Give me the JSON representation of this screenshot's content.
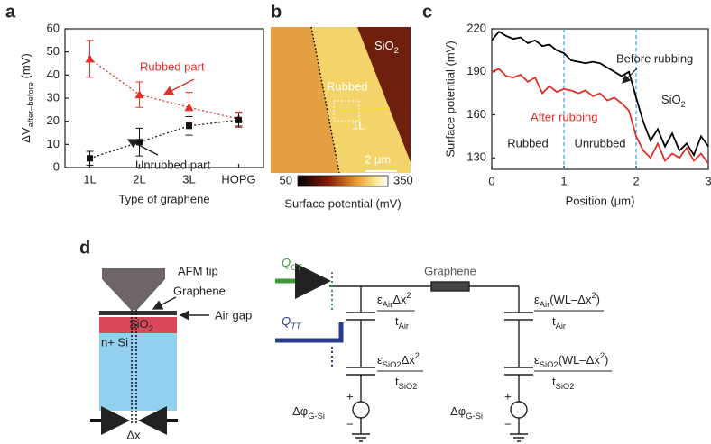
{
  "chart_data": [
    {
      "type": "line",
      "panel_label": "a",
      "categories": [
        "1L",
        "2L",
        "3L",
        "HOPG"
      ],
      "ylim": [
        0,
        60
      ],
      "yticks": [
        0,
        10,
        20,
        30,
        40,
        50,
        60
      ],
      "xlabel": "Type of graphene",
      "ylabel": [
        {
          "t": "ΔV"
        },
        {
          "sub": "after–before"
        },
        {
          "t": " (mV)"
        }
      ],
      "series": [
        {
          "name": "Rubbed part",
          "color": "#e0302a",
          "marker": "triangle",
          "values": [
            47,
            31.5,
            26,
            21
          ],
          "errors": [
            8,
            5.5,
            6.5,
            3
          ]
        },
        {
          "name": "Unrubbed part",
          "color": "#111111",
          "marker": "square",
          "values": [
            4,
            11,
            18,
            20.5
          ],
          "errors": [
            3,
            6,
            4,
            3
          ]
        }
      ]
    },
    {
      "type": "line",
      "panel_label": "c",
      "x": [
        0,
        0.1,
        0.2,
        0.3,
        0.4,
        0.5,
        0.6,
        0.7,
        0.8,
        0.9,
        1.0,
        1.1,
        1.2,
        1.3,
        1.4,
        1.5,
        1.6,
        1.7,
        1.8,
        1.9,
        2.0,
        2.1,
        2.2,
        2.3,
        2.4,
        2.5,
        2.6,
        2.7,
        2.8,
        2.9,
        3.0
      ],
      "xlim": [
        0,
        3
      ],
      "xticks": [
        0,
        1,
        2,
        3
      ],
      "ylim": [
        122,
        220
      ],
      "yticks": [
        130,
        160,
        190,
        220
      ],
      "xlabel": "Position (μm)",
      "ylabel": "Surface potential (mV)",
      "vlines": [
        1,
        2
      ],
      "region_labels": [
        "Rubbed",
        "Unrubbed"
      ],
      "material_label": [
        {
          "t": "SiO"
        },
        {
          "sub": "2"
        }
      ],
      "series": [
        {
          "name": "Before rubbing",
          "color": "#000000",
          "values": [
            212,
            218,
            215,
            213,
            214,
            210,
            212,
            208,
            209,
            205,
            203,
            198,
            197,
            196,
            197,
            196,
            193,
            190,
            187,
            190,
            172,
            155,
            142,
            150,
            138,
            147,
            135,
            140,
            132,
            145,
            138
          ]
        },
        {
          "name": "After rubbing",
          "color": "#e0302a",
          "values": [
            190,
            192,
            187,
            186,
            188,
            183,
            186,
            175,
            180,
            176,
            178,
            177,
            175,
            177,
            173,
            175,
            170,
            172,
            168,
            163,
            145,
            135,
            130,
            140,
            128,
            133,
            130,
            137,
            128,
            133,
            126
          ]
        }
      ]
    }
  ],
  "panel_b": {
    "panel_label": "b",
    "substrate": [
      {
        "t": "SiO"
      },
      {
        "sub": "2"
      }
    ],
    "region": "Rubbed",
    "layer": "1L",
    "scale_bar": "2 μm",
    "colorbar": {
      "clim": [
        50,
        350
      ],
      "ticks": [
        50,
        350
      ],
      "label": "Surface potential (mV)"
    }
  },
  "panel_d": {
    "panel_label": "d",
    "tip": "AFM tip",
    "graphene": "Graphene",
    "air_gap": "Air gap",
    "oxide": [
      {
        "t": "SiO"
      },
      {
        "sub": "2"
      }
    ],
    "silicon": "n+ Si",
    "gap_width": "Δx",
    "charge_ct": [
      {
        "t": "Q"
      },
      {
        "sub": "CT"
      }
    ],
    "charge_tt": [
      {
        "t": "Q"
      },
      {
        "sub": "TT"
      }
    ],
    "resistor": "Graphene",
    "caps": [
      {
        "num": [
          {
            "t": "ε"
          },
          {
            "sub": "Air"
          },
          {
            "t": "Δx"
          },
          {
            "sup": "2"
          }
        ],
        "den": [
          {
            "t": "t"
          },
          {
            "sub": "Air"
          }
        ]
      },
      {
        "num": [
          {
            "t": "ε"
          },
          {
            "sub": "SiO2"
          },
          {
            "t": "Δx"
          },
          {
            "sup": "2"
          }
        ],
        "den": [
          {
            "t": "t"
          },
          {
            "sub": "SiO2"
          }
        ]
      },
      {
        "num": [
          {
            "t": "ε"
          },
          {
            "sub": "Air"
          },
          {
            "t": "(WL–Δx"
          },
          {
            "sup": "2"
          },
          {
            "t": ")"
          }
        ],
        "den": [
          {
            "t": "t"
          },
          {
            "sub": "Air"
          }
        ]
      },
      {
        "num": [
          {
            "t": "ε"
          },
          {
            "sub": "SiO2"
          },
          {
            "t": "(WL–Δx"
          },
          {
            "sup": "2"
          },
          {
            "t": ")"
          }
        ],
        "den": [
          {
            "t": "t"
          },
          {
            "sub": "SiO2"
          }
        ]
      }
    ],
    "source": [
      {
        "t": "Δφ"
      },
      {
        "sub": "G-Si"
      }
    ],
    "plus": "+",
    "minus": "−"
  }
}
